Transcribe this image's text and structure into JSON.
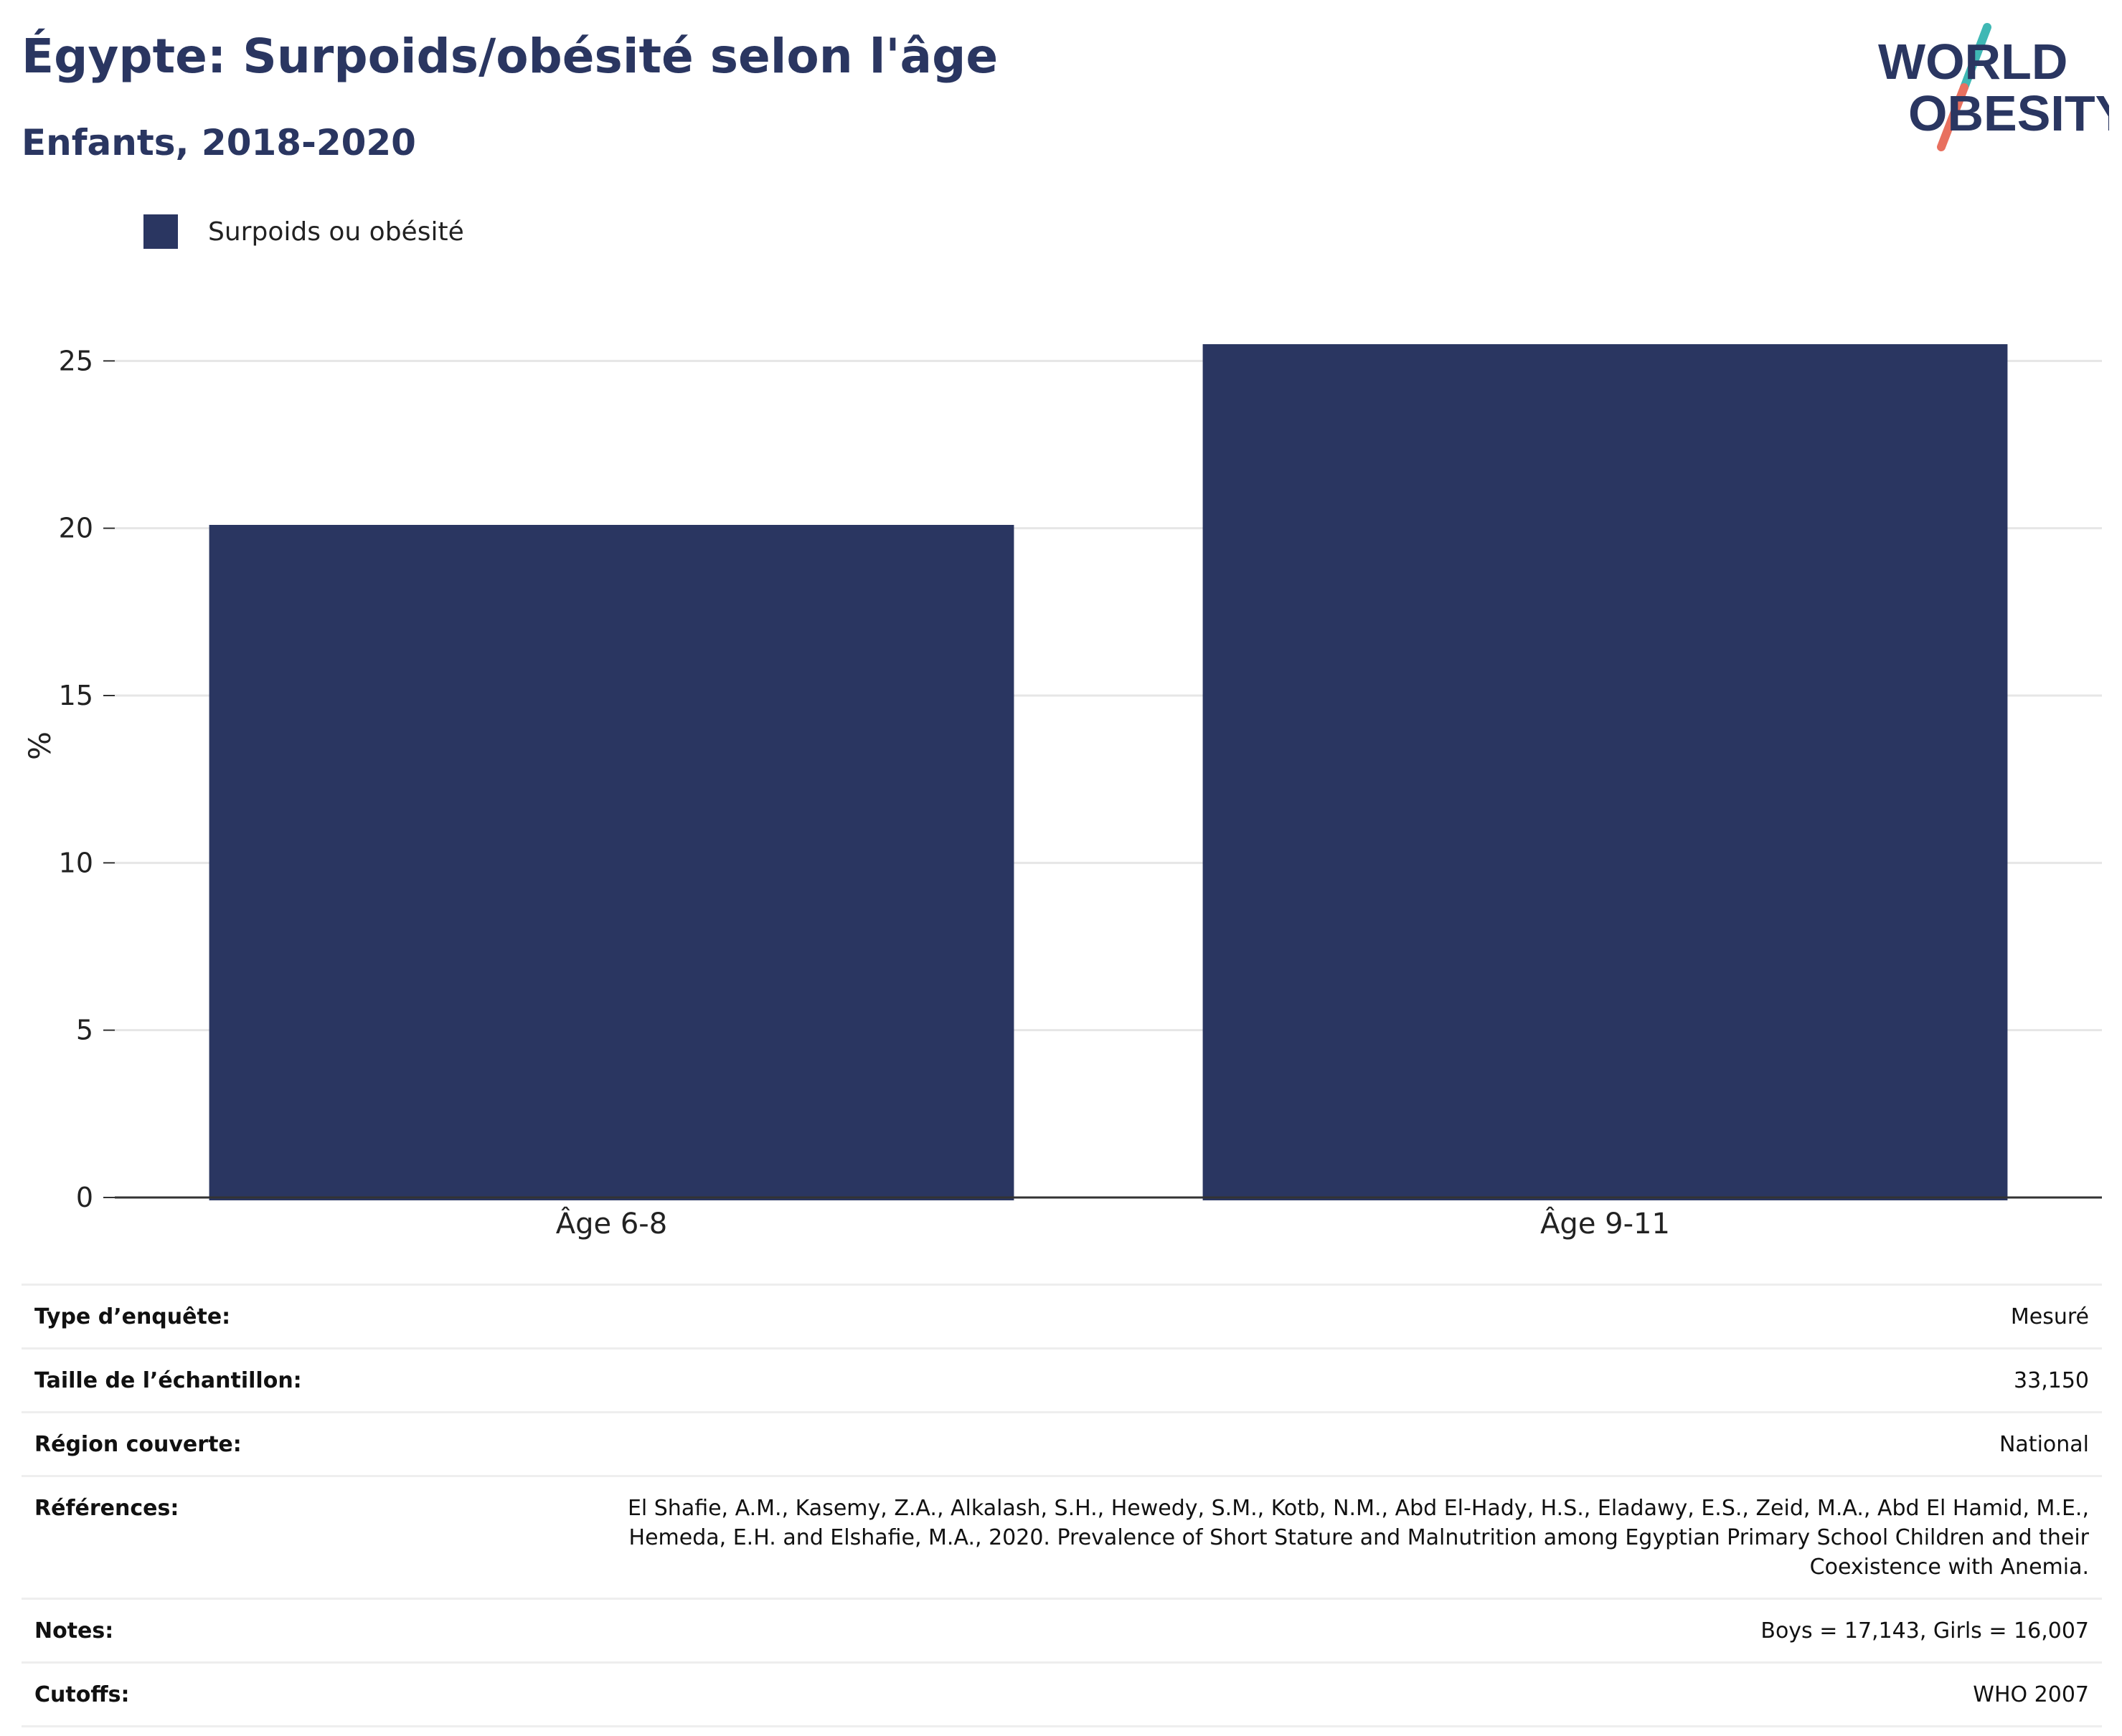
{
  "title": "Égypte: Surpoids/obésité selon l'âge",
  "subtitle": "Enfants, 2018-2020",
  "logo": {
    "line1": "WORLD",
    "line2": "OBESITY",
    "colors": {
      "text": "#2a3661",
      "slash_top": "#3fb8b4",
      "slash_bottom": "#e8705f"
    }
  },
  "legend": [
    {
      "label": "Surpoids ou obésité",
      "color": "#2a3661"
    }
  ],
  "chart_data": {
    "type": "bar",
    "categories": [
      "Âge 6-8",
      "Âge 9-11"
    ],
    "series": [
      {
        "name": "Surpoids ou obésité",
        "values": [
          20.1,
          25.5
        ],
        "color": "#2a3661"
      }
    ],
    "ylabel": "%",
    "xlabel": "",
    "ylim": [
      0,
      27
    ],
    "yticks": [
      0,
      5,
      10,
      15,
      20,
      25
    ],
    "grid": true
  },
  "info": [
    {
      "key": "Type d’enquête:",
      "value": "Mesuré"
    },
    {
      "key": "Taille de l’échantillon:",
      "value": "33,150"
    },
    {
      "key": "Région couverte:",
      "value": "National"
    },
    {
      "key": "Références:",
      "value": "El Shafie, A.M., Kasemy, Z.A., Alkalash, S.H., Hewedy, S.M., Kotb, N.M., Abd El-Hady, H.S., Eladawy, E.S., Zeid, M.A., Abd El Hamid, M.E., Hemeda, E.H. and Elshafie, M.A., 2020. Prevalence of Short Stature and Malnutrition among Egyptian Primary School Children and their Coexistence with Anemia."
    },
    {
      "key": "Notes:",
      "value": "Boys = 17,143, Girls = 16,007"
    },
    {
      "key": "Cutoffs:",
      "value": "WHO 2007"
    }
  ]
}
